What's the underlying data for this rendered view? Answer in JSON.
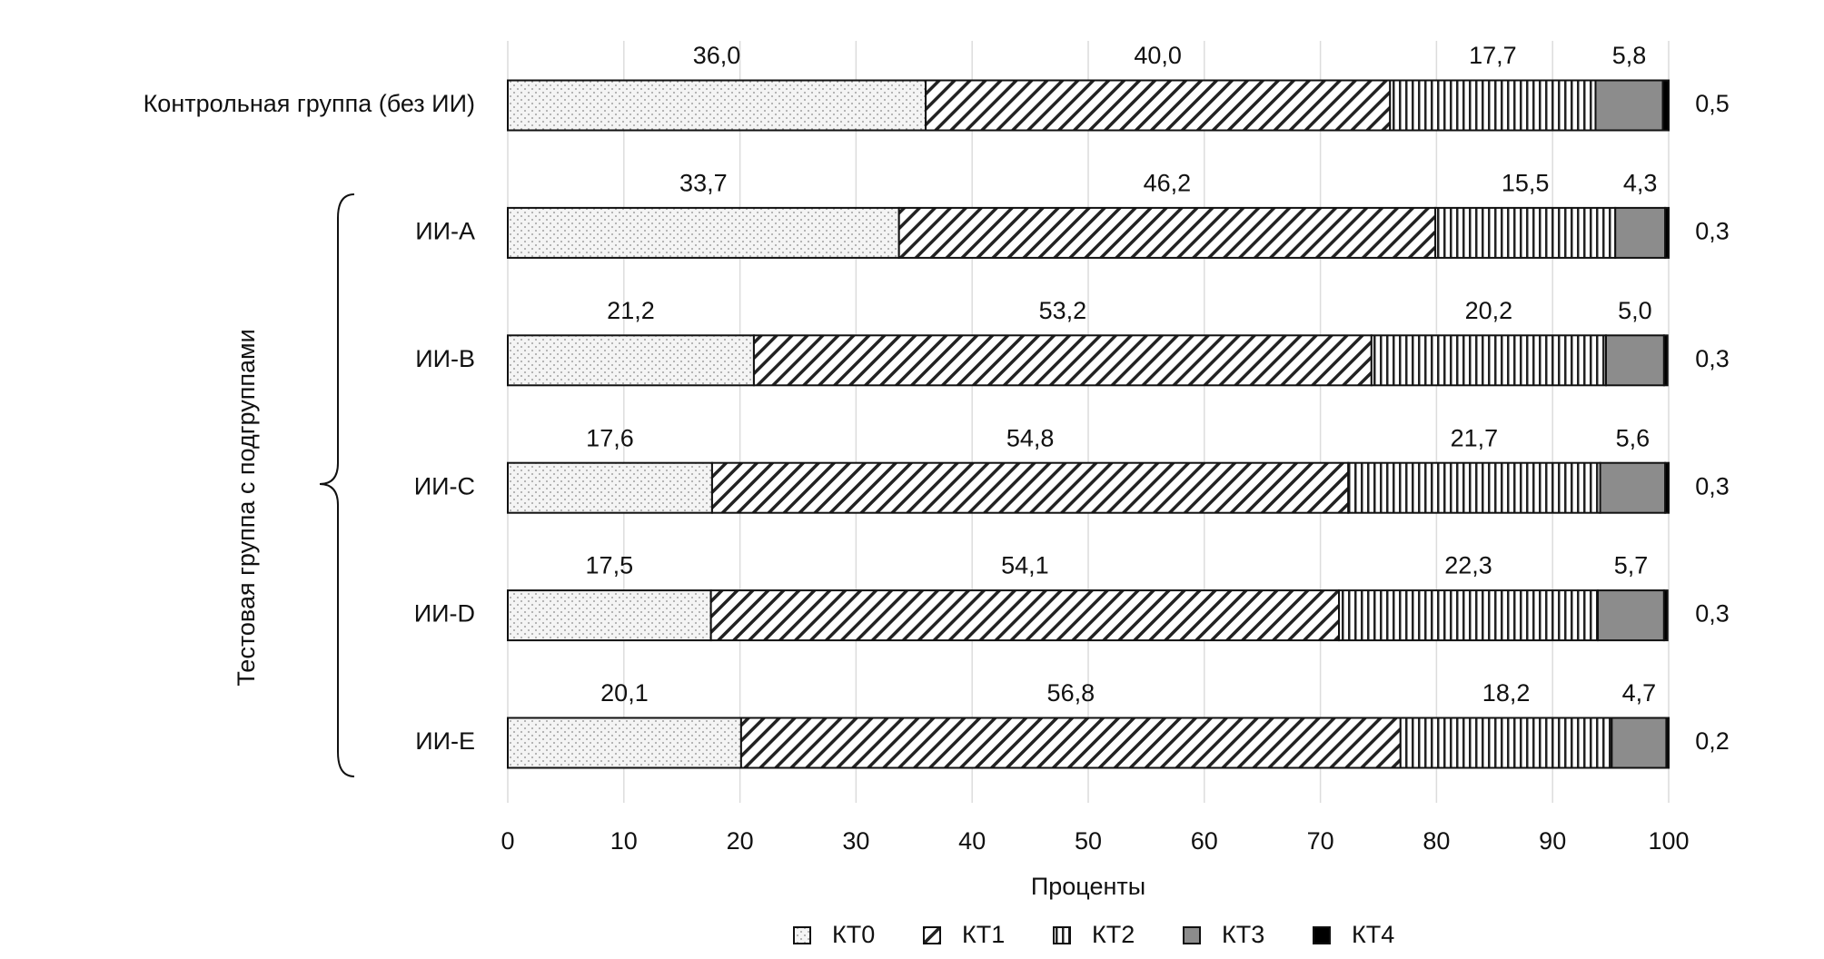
{
  "chart_data": {
    "type": "stacked_barh",
    "x_label": "Проценты",
    "group_label": "Тестовая группа с подгруппами",
    "categories": [
      "Контрольная группа (без ИИ)",
      "ИИ-A",
      "ИИ-B",
      "ИИ-C",
      "ИИ-D",
      "ИИ-E"
    ],
    "series": [
      {
        "name": "КТ0",
        "color": "#f4f4f4",
        "pattern": "dots",
        "values": [
          36.0,
          33.7,
          21.2,
          17.6,
          17.5,
          20.1
        ],
        "value_labels": [
          "36,0",
          "33,7",
          "21,2",
          "17,6",
          "17,5",
          "20,1"
        ]
      },
      {
        "name": "КТ1",
        "color": "#ffffff",
        "pattern": "diagonal",
        "values": [
          40.0,
          46.2,
          53.2,
          54.8,
          54.1,
          56.8
        ],
        "value_labels": [
          "40,0",
          "46,2",
          "53,2",
          "54,8",
          "54,1",
          "56,8"
        ]
      },
      {
        "name": "КТ2",
        "color": "#ffffff",
        "pattern": "vertical",
        "values": [
          17.7,
          15.5,
          20.2,
          21.7,
          22.3,
          18.2
        ],
        "value_labels": [
          "17,7",
          "15,5",
          "20,2",
          "21,7",
          "22,3",
          "18,2"
        ]
      },
      {
        "name": "КТ3",
        "color": "#8c8c8c",
        "pattern": "solid",
        "values": [
          5.8,
          4.3,
          5.0,
          5.6,
          5.7,
          4.7
        ],
        "value_labels": [
          "5,8",
          "4,3",
          "5,0",
          "5,6",
          "5,7",
          "4,7"
        ]
      },
      {
        "name": "КТ4",
        "color": "#000000",
        "pattern": "solid",
        "values": [
          0.5,
          0.3,
          0.3,
          0.3,
          0.3,
          0.2
        ],
        "value_labels": [
          "0,5",
          "0,3",
          "0,3",
          "0,3",
          "0,3",
          "0,2"
        ]
      }
    ],
    "xlim": [
      0,
      100
    ],
    "xticks": [
      0,
      10,
      20,
      30,
      40,
      50,
      60,
      70,
      80,
      90,
      100
    ],
    "grid": true
  }
}
